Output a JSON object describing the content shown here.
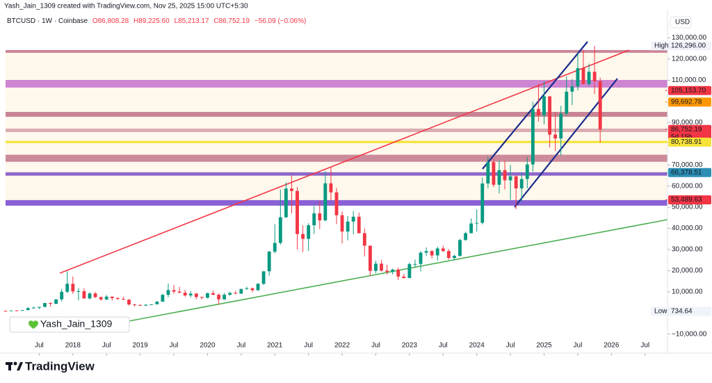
{
  "chart_data": {
    "type": "candlestick",
    "attribution": "Yash_Jain_1309 created with TradingView.com, Nov 25, 2025 15:00 UTC+5:30",
    "symbol": "BTCUSD · 1W · Coinbase",
    "ohlc_legend": [
      "O86,808.28",
      "H89,225.60",
      "L85,213.17",
      "C86,752.19",
      "−56.09 (−0.06%)"
    ],
    "currency": "USD",
    "watermark": "Yash_Jain_1309",
    "brand": "TradingView",
    "up_color": "#089981",
    "down_color": "#f23645",
    "grid": false,
    "xlim": [
      "2017-01",
      "2026-11"
    ],
    "xticks": [
      {
        "value": "2017-07",
        "label": "Jul"
      },
      {
        "value": "2018-01",
        "label": "2018"
      },
      {
        "value": "2018-07",
        "label": "Jul"
      },
      {
        "value": "2019-01",
        "label": "2019"
      },
      {
        "value": "2019-07",
        "label": "Jul"
      },
      {
        "value": "2020-01",
        "label": "2020"
      },
      {
        "value": "2020-07",
        "label": "Jul"
      },
      {
        "value": "2021-01",
        "label": "2021"
      },
      {
        "value": "2021-07",
        "label": "Jul"
      },
      {
        "value": "2022-01",
        "label": "2022"
      },
      {
        "value": "2022-07",
        "label": "Jul"
      },
      {
        "value": "2023-01",
        "label": "2023"
      },
      {
        "value": "2023-07",
        "label": "Jul"
      },
      {
        "value": "2024-01",
        "label": "2024"
      },
      {
        "value": "2024-07",
        "label": "Jul"
      },
      {
        "value": "2025-01",
        "label": "2025"
      },
      {
        "value": "2025-07",
        "label": "Jul"
      },
      {
        "value": "2026-01",
        "label": "2026"
      },
      {
        "value": "2026-07",
        "label": "Jul"
      }
    ],
    "ylim": [
      -14700,
      143000
    ],
    "yticks": [
      {
        "value": 130000,
        "label": "130,000.00"
      },
      {
        "value": 120000,
        "label": "120,000.00"
      },
      {
        "value": 110000,
        "label": "110,000.00"
      },
      {
        "value": 90000,
        "label": "90,000.00"
      },
      {
        "value": 70000,
        "label": "70,000.00"
      },
      {
        "value": 60000,
        "label": "60,000.00"
      },
      {
        "value": 50000,
        "label": "50,000.00"
      },
      {
        "value": 40000,
        "label": "40,000.00"
      },
      {
        "value": 30000,
        "label": "30,000.00"
      },
      {
        "value": 20000,
        "label": "20,000.00"
      },
      {
        "value": 10000,
        "label": "10,000.00"
      },
      {
        "value": -10000,
        "label": "−10,000.00"
      }
    ],
    "zones": [
      {
        "range": [
          50700,
          124300
        ],
        "color": "rgba(255,236,200,0.35)"
      },
      {
        "range": [
          122970,
          124280
        ],
        "color": "rgba(176,72,110,0.65)"
      },
      {
        "range": [
          106540,
          110150
        ],
        "color": "rgba(190,95,200,0.75)"
      },
      {
        "range": [
          92740,
          95040
        ],
        "color": "rgba(170,70,105,0.65)"
      },
      {
        "range": [
          85500,
          87150
        ],
        "color": "rgba(190,110,130,0.55)"
      },
      {
        "range": [
          80300,
          81360
        ],
        "color": "#f7e23a"
      },
      {
        "range": [
          71460,
          74800
        ],
        "color": "rgba(176,80,112,0.65)"
      },
      {
        "range": [
          64900,
          66500
        ],
        "color": "rgba(130,85,200,0.9)"
      },
      {
        "range": [
          50720,
          53350
        ],
        "color": "rgba(125,80,210,0.9)"
      }
    ],
    "price_labels": [
      {
        "value": 126296,
        "label": "126,296.00",
        "tag": "High",
        "bg": "#f0f3fa",
        "fg": "#131722"
      },
      {
        "value": 105153.7,
        "label": "105,153.70",
        "bg": "#f23645",
        "fg": "#ffffff"
      },
      {
        "value": 99692.78,
        "label": "99,692.78",
        "bg": "#ff9800",
        "fg": "#ffffff"
      },
      {
        "value": 86752.19,
        "label": "86,752.19",
        "sub": "5d 15h",
        "bg": "#f23645",
        "fg": "#ffffff"
      },
      {
        "value": 80738.91,
        "label": "80,738.91",
        "bg": "#f7e23a",
        "fg": "#131722"
      },
      {
        "value": 66378.51,
        "label": "66,378.51",
        "bg": "#2d8fb5",
        "fg": "#ffffff"
      },
      {
        "value": 53489.63,
        "label": "53,489.63",
        "bg": "#f23645",
        "fg": "#ffffff"
      },
      {
        "value": 734.64,
        "label": "734.64",
        "tag": "Low",
        "bg": "#f0f3fa",
        "fg": "#131722"
      }
    ],
    "candles": {
      "x": [
        "2017-01",
        "2017-02",
        "2017-03",
        "2017-04",
        "2017-05",
        "2017-06",
        "2017-07",
        "2017-08",
        "2017-09",
        "2017-10",
        "2017-11",
        "2017-12",
        "2018-01",
        "2018-02",
        "2018-03",
        "2018-04",
        "2018-05",
        "2018-06",
        "2018-07",
        "2018-08",
        "2018-09",
        "2018-10",
        "2018-11",
        "2018-12",
        "2019-01",
        "2019-02",
        "2019-03",
        "2019-04",
        "2019-05",
        "2019-06",
        "2019-07",
        "2019-08",
        "2019-09",
        "2019-10",
        "2019-11",
        "2019-12",
        "2020-01",
        "2020-02",
        "2020-03",
        "2020-04",
        "2020-05",
        "2020-06",
        "2020-07",
        "2020-08",
        "2020-09",
        "2020-10",
        "2020-11",
        "2020-12",
        "2021-01",
        "2021-02",
        "2021-03",
        "2021-04",
        "2021-05",
        "2021-06",
        "2021-07",
        "2021-08",
        "2021-09",
        "2021-10",
        "2021-11",
        "2021-12",
        "2022-01",
        "2022-02",
        "2022-03",
        "2022-04",
        "2022-05",
        "2022-06",
        "2022-07",
        "2022-08",
        "2022-09",
        "2022-10",
        "2022-11",
        "2022-12",
        "2023-01",
        "2023-02",
        "2023-03",
        "2023-04",
        "2023-05",
        "2023-06",
        "2023-07",
        "2023-08",
        "2023-09",
        "2023-10",
        "2023-11",
        "2023-12",
        "2024-01",
        "2024-02",
        "2024-03",
        "2024-04",
        "2024-05",
        "2024-06",
        "2024-07",
        "2024-08",
        "2024-09",
        "2024-10",
        "2024-11",
        "2024-12",
        "2025-01",
        "2025-02",
        "2025-03",
        "2025-04",
        "2025-05",
        "2025-06",
        "2025-07",
        "2025-08",
        "2025-09",
        "2025-10",
        "2025-11"
      ],
      "open": [
        1000,
        970,
        1190,
        1080,
        1350,
        2300,
        2480,
        2880,
        4700,
        4340,
        6450,
        10000,
        13800,
        10200,
        10300,
        6900,
        9240,
        7490,
        6390,
        7730,
        7040,
        6630,
        6300,
        4020,
        3740,
        3460,
        3850,
        4100,
        5350,
        8570,
        10820,
        10100,
        9600,
        8290,
        9150,
        7560,
        7190,
        9350,
        8600,
        6440,
        8620,
        9460,
        9140,
        11350,
        11650,
        10780,
        13800,
        19700,
        28990,
        33100,
        45240,
        58800,
        57700,
        37300,
        35040,
        41460,
        47100,
        43800,
        61300,
        57000,
        46200,
        38500,
        43200,
        45500,
        37700,
        31800,
        19900,
        23300,
        20000,
        19400,
        20500,
        17200,
        16500,
        23100,
        23150,
        28500,
        29250,
        27200,
        30500,
        29250,
        26000,
        27000,
        34500,
        37700,
        42300,
        42600,
        61200,
        71300,
        60600,
        67500,
        62700,
        64600,
        58900,
        63300,
        70200,
        96400,
        93400,
        102400,
        84300,
        82500,
        94200,
        104600,
        107100,
        115700,
        108200,
        114000,
        109500
      ],
      "high": [
        1150,
        1200,
        1290,
        1350,
        2760,
        3000,
        2920,
        4750,
        5000,
        6470,
        11400,
        19700,
        17200,
        11800,
        11700,
        9750,
        9990,
        7770,
        8500,
        7760,
        7410,
        7680,
        6570,
        4240,
        4100,
        4200,
        4150,
        5600,
        9100,
        13880,
        13200,
        12330,
        10950,
        10370,
        9500,
        7750,
        9580,
        10500,
        9190,
        9470,
        10070,
        10380,
        11450,
        12470,
        12070,
        14100,
        19500,
        29300,
        41950,
        58350,
        61800,
        64900,
        59500,
        41300,
        42400,
        50500,
        52900,
        67000,
        69000,
        59100,
        47990,
        45800,
        48200,
        47450,
        40000,
        31900,
        24700,
        25200,
        22800,
        21000,
        21500,
        18400,
        23900,
        25250,
        29200,
        31000,
        29800,
        31400,
        31800,
        30200,
        27500,
        35000,
        38400,
        44700,
        49000,
        64000,
        73800,
        72800,
        71900,
        72000,
        70000,
        65000,
        66500,
        73600,
        99800,
        108300,
        109600,
        102500,
        95000,
        97900,
        111900,
        110500,
        123200,
        124500,
        117900,
        126200,
        111200
      ],
      "low": [
        750,
        920,
        890,
        1060,
        1350,
        2100,
        1840,
        2700,
        2950,
        4100,
        5500,
        9400,
        9000,
        6000,
        6600,
        6450,
        7000,
        5750,
        6070,
        5880,
        6100,
        6200,
        3600,
        3120,
        3350,
        3390,
        3730,
        4080,
        5330,
        7450,
        9070,
        9330,
        7710,
        7300,
        6520,
        6430,
        6880,
        8450,
        3850,
        6150,
        8110,
        8900,
        8970,
        10900,
        9850,
        10400,
        13200,
        17600,
        28130,
        32300,
        44950,
        47000,
        30000,
        28800,
        29300,
        37300,
        39600,
        43300,
        53300,
        42000,
        32900,
        34300,
        37200,
        37600,
        26700,
        17600,
        18800,
        19600,
        18200,
        18200,
        15500,
        16300,
        16500,
        21400,
        19600,
        26900,
        25800,
        24800,
        28900,
        25200,
        24900,
        26600,
        34100,
        37600,
        38500,
        41900,
        59000,
        59600,
        56500,
        58400,
        53500,
        49000,
        52500,
        58900,
        66800,
        90500,
        89200,
        78200,
        76600,
        74400,
        93300,
        98200,
        105200,
        108000,
        107300,
        103500,
        80600
      ],
      "close": [
        970,
        1190,
        1080,
        1350,
        2300,
        2480,
        2880,
        4700,
        4340,
        6450,
        10000,
        13800,
        10200,
        10300,
        6900,
        9240,
        7490,
        6390,
        7730,
        7040,
        6630,
        6300,
        4020,
        3740,
        3460,
        3850,
        4100,
        5350,
        8570,
        10820,
        10100,
        9600,
        8290,
        9150,
        7560,
        7190,
        9350,
        8600,
        6440,
        8620,
        9460,
        9140,
        11350,
        11650,
        10780,
        13800,
        19700,
        28990,
        33100,
        45240,
        58800,
        57700,
        37300,
        35040,
        41460,
        47100,
        43800,
        61300,
        57000,
        46200,
        38500,
        43200,
        45500,
        37700,
        31800,
        19900,
        23300,
        20000,
        19400,
        20500,
        17200,
        16500,
        23100,
        23150,
        28500,
        29250,
        27200,
        30500,
        29250,
        26000,
        27000,
        34500,
        37700,
        42300,
        42600,
        61200,
        71300,
        60600,
        67500,
        62700,
        64600,
        58900,
        63300,
        70200,
        96400,
        93400,
        102400,
        84300,
        82500,
        94200,
        104600,
        107100,
        115700,
        108200,
        114000,
        109500,
        86752.19
      ]
    }
  }
}
